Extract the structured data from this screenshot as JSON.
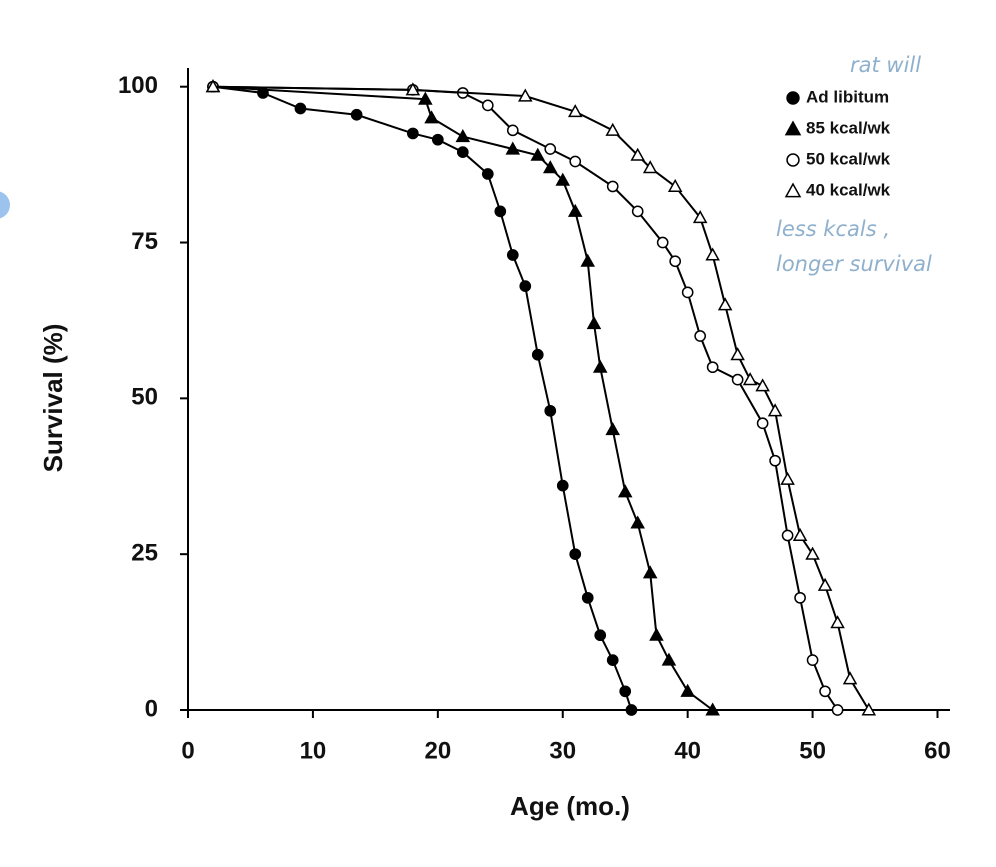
{
  "chart_data": {
    "type": "line",
    "step_style": "markers",
    "xlabel": "Age (mo.)",
    "ylabel": "Survival (%)",
    "xlim": [
      0,
      61
    ],
    "ylim": [
      0,
      103
    ],
    "xticks": [
      0,
      10,
      20,
      30,
      40,
      50,
      60
    ],
    "yticks": [
      0,
      25,
      50,
      75,
      100
    ],
    "legend": "upper right",
    "annotations": [
      "rat will",
      "less kcals ,",
      "longer survival"
    ],
    "series": [
      {
        "name": "Ad libitum",
        "color": "#000000",
        "marker": "circle",
        "filled": true,
        "x": [
          2,
          6,
          9,
          13.5,
          18,
          20,
          22,
          24,
          25,
          26,
          27,
          28,
          29,
          30,
          31,
          32,
          33,
          34,
          35,
          35.5
        ],
        "values": [
          100,
          99,
          96.5,
          95.5,
          92.5,
          91.5,
          89.5,
          86,
          80,
          73,
          68,
          57,
          48,
          36,
          25,
          18,
          12,
          8,
          3,
          0
        ]
      },
      {
        "name": "85 kcal/wk",
        "color": "#000000",
        "marker": "triangle",
        "filled": true,
        "x": [
          2,
          19,
          19.5,
          22,
          26,
          28,
          29,
          30,
          31,
          32,
          32.5,
          33,
          34,
          35,
          36,
          37,
          37.5,
          38.5,
          40,
          42
        ],
        "values": [
          100,
          98,
          95,
          92,
          90,
          89,
          87,
          85,
          80,
          72,
          62,
          55,
          45,
          35,
          30,
          22,
          12,
          8,
          3,
          0
        ]
      },
      {
        "name": "50 kcal/wk",
        "color": "#000000",
        "marker": "circle",
        "filled": false,
        "x": [
          2,
          18,
          22,
          24,
          26,
          29,
          31,
          34,
          36,
          38,
          39,
          40,
          41,
          42,
          44,
          46,
          47,
          48,
          49,
          50,
          51,
          52
        ],
        "values": [
          100,
          99.5,
          99,
          97,
          93,
          90,
          88,
          84,
          80,
          75,
          72,
          67,
          60,
          55,
          53,
          46,
          40,
          28,
          18,
          8,
          3,
          0
        ]
      },
      {
        "name": "40 kcal/wk",
        "color": "#000000",
        "marker": "triangle",
        "filled": false,
        "x": [
          2,
          18,
          27,
          31,
          34,
          36,
          37,
          39,
          41,
          42,
          43,
          44,
          45,
          46,
          47,
          48,
          49,
          50,
          51,
          52,
          53,
          54.5
        ],
        "values": [
          100,
          99.5,
          98.5,
          96,
          93,
          89,
          87,
          84,
          79,
          73,
          65,
          57,
          53,
          52,
          48,
          37,
          28,
          25,
          20,
          14,
          5,
          0
        ]
      }
    ]
  }
}
